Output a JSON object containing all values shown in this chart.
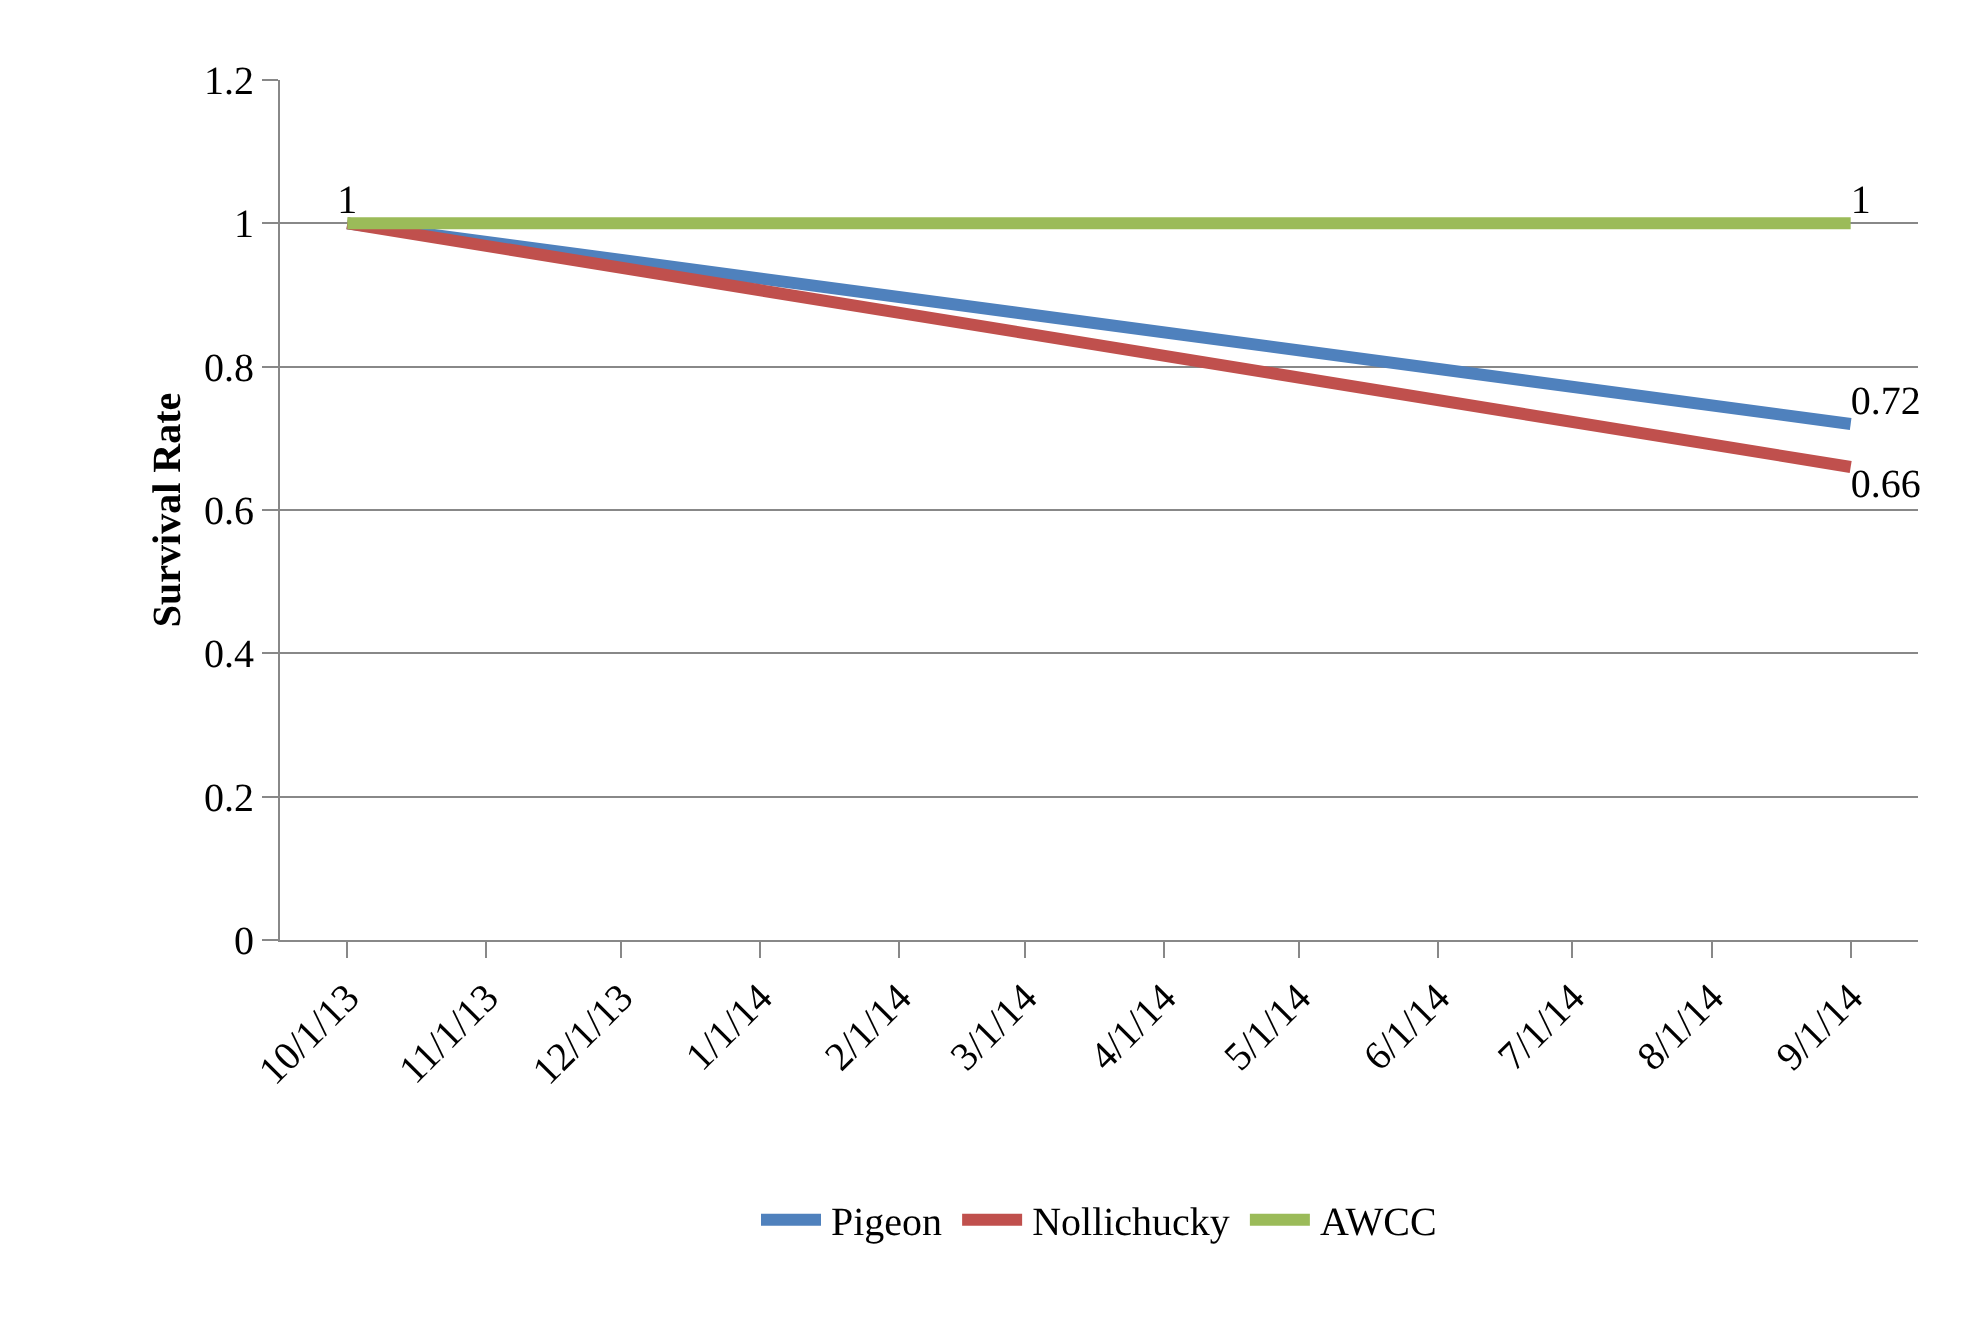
{
  "chart_data": {
    "type": "line",
    "ylabel": "Survival Rate",
    "x": [
      "2013-10-01",
      "2014-09-01"
    ],
    "xlim": [
      "2013-09-16",
      "2014-09-16"
    ],
    "xticks": [
      {
        "value": "2013-10-01",
        "label": "10/1/13"
      },
      {
        "value": "2013-11-01",
        "label": "11/1/13"
      },
      {
        "value": "2013-12-01",
        "label": "12/1/13"
      },
      {
        "value": "2014-01-01",
        "label": "1/1/14"
      },
      {
        "value": "2014-02-01",
        "label": "2/1/14"
      },
      {
        "value": "2014-03-01",
        "label": "3/1/14"
      },
      {
        "value": "2014-04-01",
        "label": "4/1/14"
      },
      {
        "value": "2014-05-01",
        "label": "5/1/14"
      },
      {
        "value": "2014-06-01",
        "label": "6/1/14"
      },
      {
        "value": "2014-07-01",
        "label": "7/1/14"
      },
      {
        "value": "2014-08-01",
        "label": "8/1/14"
      },
      {
        "value": "2014-09-01",
        "label": "9/1/14"
      }
    ],
    "ylim": [
      0,
      1.2
    ],
    "yticks": [
      0,
      0.2,
      0.4,
      0.6,
      0.8,
      1,
      1.2
    ],
    "series": [
      {
        "name": "Pigeon",
        "color": "#4f81bd",
        "values": [
          1,
          0.72
        ],
        "value_labels": [
          null,
          "0.72"
        ]
      },
      {
        "name": "Nollichucky",
        "color": "#c0504d",
        "values": [
          1,
          0.66
        ],
        "value_labels": [
          null,
          "0.66"
        ]
      },
      {
        "name": "AWCC",
        "color": "#9bbb59",
        "values": [
          1,
          1
        ],
        "value_labels": [
          "1",
          "1"
        ]
      }
    ],
    "grid": "y",
    "legend": "bottom",
    "marker": "none",
    "line_style": "solid"
  }
}
